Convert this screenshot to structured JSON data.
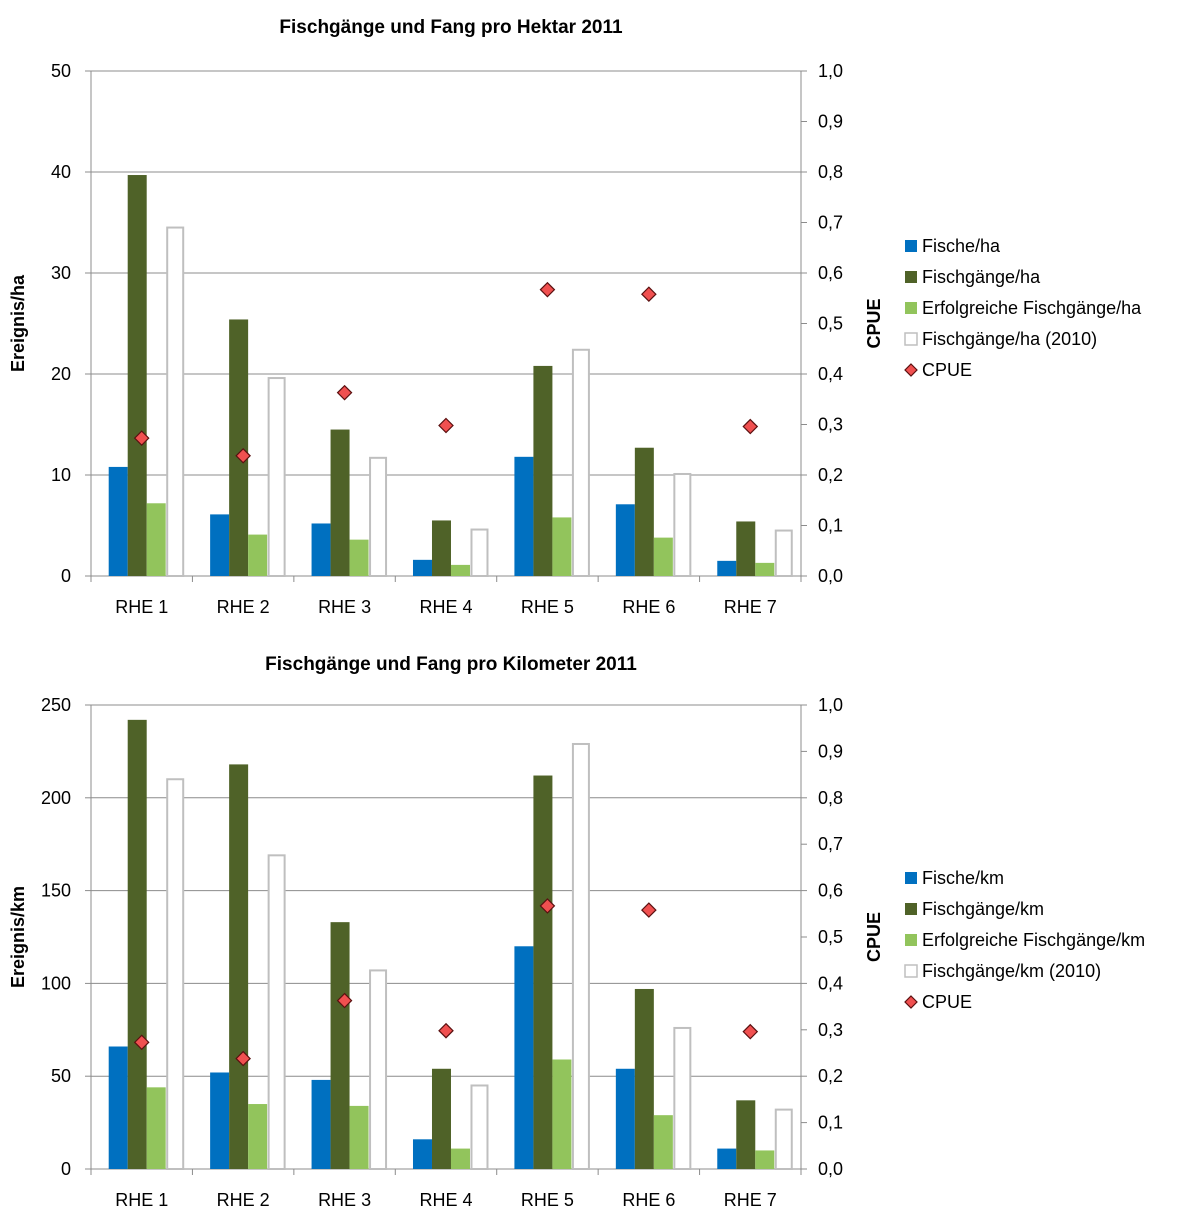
{
  "chart_data": [
    {
      "type": "bar",
      "title": "Fischgänge und Fang pro Hektar 2011",
      "ylabel": "Ereignis/ha",
      "y2label": "CPUE",
      "ylim": [
        0,
        50
      ],
      "yticks": [
        "0",
        "10",
        "20",
        "30",
        "40",
        "50"
      ],
      "y2lim": [
        0,
        1.0
      ],
      "y2ticks": [
        "0,0",
        "0,1",
        "0,2",
        "0,3",
        "0,4",
        "0,5",
        "0,6",
        "0,7",
        "0,8",
        "0,9",
        "1,0"
      ],
      "categories": [
        "RHE 1",
        "RHE 2",
        "RHE 3",
        "RHE 4",
        "RHE 5",
        "RHE 6",
        "RHE 7"
      ],
      "grid": true,
      "legend_position": "right",
      "series": [
        {
          "name": "Fische/ha",
          "kind": "bar",
          "color": "#0070C0",
          "values": [
            10.8,
            6.1,
            5.2,
            1.6,
            11.8,
            7.1,
            1.5
          ]
        },
        {
          "name": "Fischgänge/ha",
          "kind": "bar",
          "color": "#4F6228",
          "values": [
            39.7,
            25.4,
            14.5,
            5.5,
            20.8,
            12.7,
            5.4
          ]
        },
        {
          "name": "Erfolgreiche Fischgänge/ha",
          "kind": "bar",
          "color": "#92C45C",
          "values": [
            7.2,
            4.1,
            3.6,
            1.1,
            5.8,
            3.8,
            1.3
          ]
        },
        {
          "name": "Fischgänge/ha (2010)",
          "kind": "bar-outline",
          "color": "#BFBFBF",
          "values": [
            34.5,
            19.6,
            11.7,
            4.6,
            22.4,
            10.1,
            4.5
          ]
        },
        {
          "name": "CPUE",
          "kind": "marker",
          "axis": "y2",
          "color": "#F05050",
          "values": [
            0.273,
            0.238,
            0.363,
            0.298,
            0.567,
            0.558,
            0.296
          ]
        }
      ]
    },
    {
      "type": "bar",
      "title": "Fischgänge und Fang pro Kilometer 2011",
      "ylabel": "Ereignis/km",
      "y2label": "CPUE",
      "ylim": [
        0,
        250
      ],
      "yticks": [
        "0",
        "50",
        "100",
        "150",
        "200",
        "250"
      ],
      "y2lim": [
        0,
        1.0
      ],
      "y2ticks": [
        "0,0",
        "0,1",
        "0,2",
        "0,3",
        "0,4",
        "0,5",
        "0,6",
        "0,7",
        "0,8",
        "0,9",
        "1,0"
      ],
      "categories": [
        "RHE 1",
        "RHE 2",
        "RHE 3",
        "RHE 4",
        "RHE 5",
        "RHE 6",
        "RHE 7"
      ],
      "grid": true,
      "legend_position": "right",
      "series": [
        {
          "name": "Fische/km",
          "kind": "bar",
          "color": "#0070C0",
          "values": [
            66,
            52,
            48,
            16,
            120,
            54,
            11
          ]
        },
        {
          "name": "Fischgänge/km",
          "kind": "bar",
          "color": "#4F6228",
          "values": [
            242,
            218,
            133,
            54,
            212,
            97,
            37
          ]
        },
        {
          "name": "Erfolgreiche Fischgänge/km",
          "kind": "bar",
          "color": "#92C45C",
          "values": [
            44,
            35,
            34,
            11,
            59,
            29,
            10
          ]
        },
        {
          "name": "Fischgänge/km (2010)",
          "kind": "bar-outline",
          "color": "#BFBFBF",
          "values": [
            210,
            169,
            107,
            45,
            229,
            76,
            32
          ]
        },
        {
          "name": "CPUE",
          "kind": "marker",
          "axis": "y2",
          "color": "#F05050",
          "values": [
            0.273,
            0.238,
            0.363,
            0.298,
            0.567,
            0.558,
            0.296
          ]
        }
      ]
    }
  ]
}
